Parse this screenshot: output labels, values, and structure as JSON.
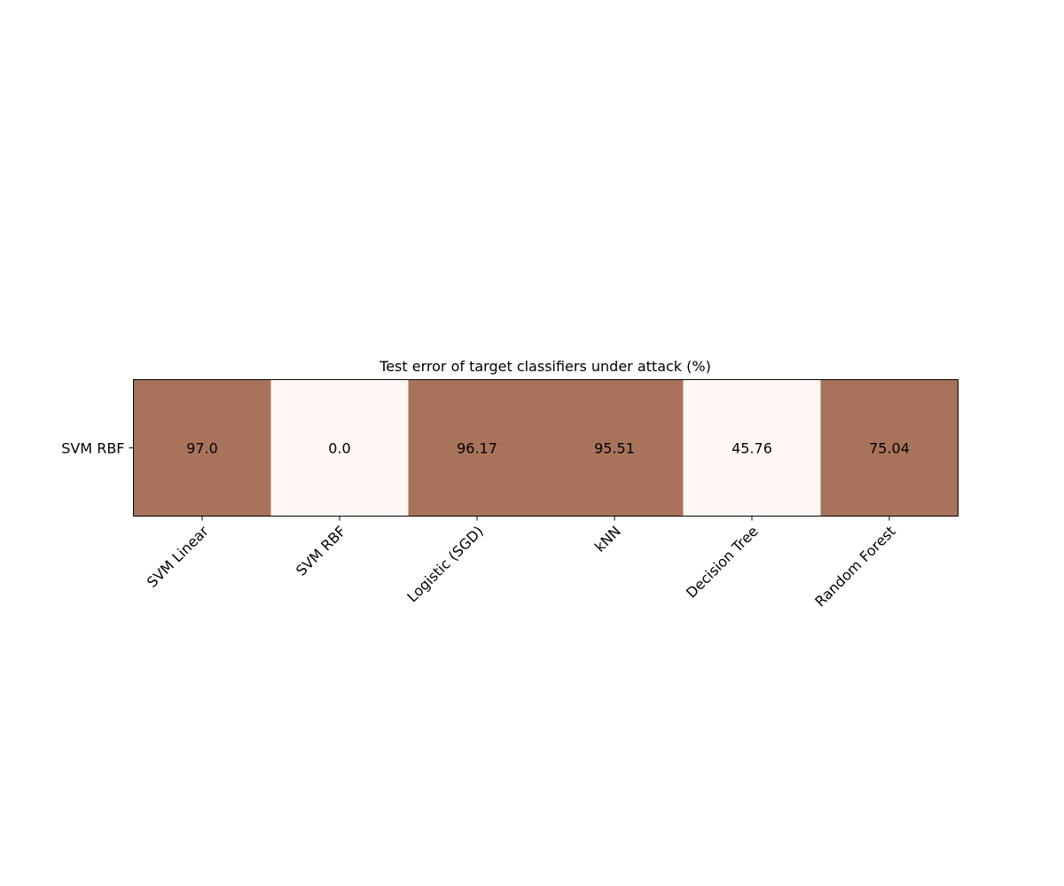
{
  "chart_data": {
    "type": "heatmap",
    "title": "Test error of target classifiers under attack (%)",
    "xlabel": "",
    "ylabel": "",
    "rows": [
      "SVM RBF"
    ],
    "columns": [
      "SVM Linear",
      "SVM RBF",
      "Logistic (SGD)",
      "kNN",
      "Decision Tree",
      "Random Forest"
    ],
    "values": [
      [
        97.0,
        0.0,
        96.17,
        95.51,
        45.76,
        75.04
      ]
    ],
    "value_labels": [
      [
        "97.0",
        "0.0",
        "96.17",
        "95.51",
        "45.76",
        "75.04"
      ]
    ],
    "colors": {
      "high": "#a9735b",
      "low": "#fff7f3"
    },
    "grid": false,
    "legend": "none"
  }
}
